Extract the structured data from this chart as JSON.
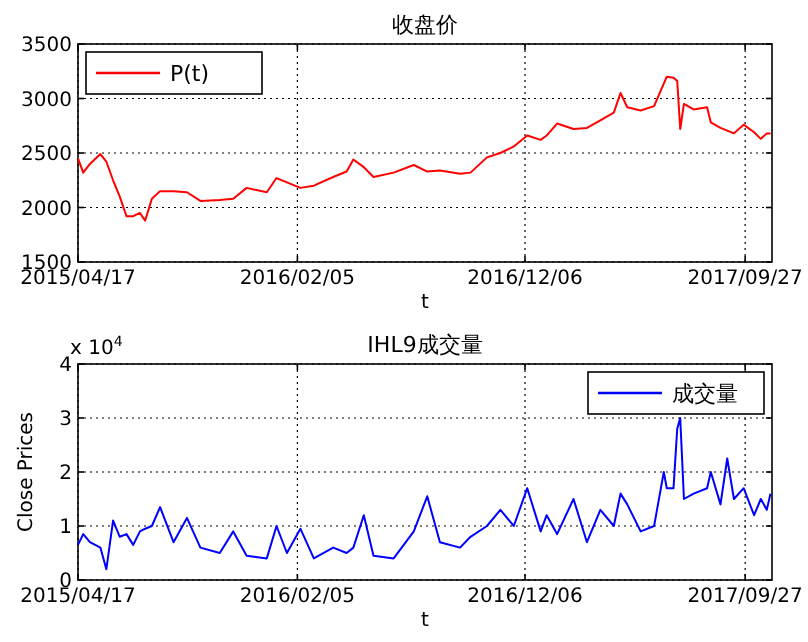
{
  "chart_data": [
    {
      "type": "line",
      "title": "收盘价",
      "xlabel": "t",
      "x": [
        "2015-04-17",
        "2015-04-24",
        "2015-05-03",
        "2015-05-17",
        "2015-05-25",
        "2015-06-03",
        "2015-06-12",
        "2015-06-21",
        "2015-06-30",
        "2015-07-09",
        "2015-07-16",
        "2015-07-25",
        "2015-08-05",
        "2015-08-23",
        "2015-09-10",
        "2015-09-28",
        "2015-10-24",
        "2015-11-11",
        "2015-11-29",
        "2015-12-26",
        "2016-01-08",
        "2016-01-22",
        "2016-02-09",
        "2016-02-27",
        "2016-03-24",
        "2016-04-11",
        "2016-04-20",
        "2016-05-04",
        "2016-05-17",
        "2016-06-13",
        "2016-07-10",
        "2016-07-28",
        "2016-08-14",
        "2016-09-10",
        "2016-09-24",
        "2016-10-16",
        "2016-11-03",
        "2016-11-21",
        "2016-12-09",
        "2016-12-27",
        "2017-01-04",
        "2017-01-18",
        "2017-02-09",
        "2017-02-27",
        "2017-03-17",
        "2017-04-04",
        "2017-04-13",
        "2017-04-22",
        "2017-05-10",
        "2017-05-28",
        "2017-06-14",
        "2017-06-23",
        "2017-06-28",
        "2017-07-02",
        "2017-07-07",
        "2017-07-20",
        "2017-08-07",
        "2017-08-12",
        "2017-08-25",
        "2017-09-12",
        "2017-09-25",
        "2017-10-09",
        "2017-10-18",
        "2017-10-26",
        "2017-10-31"
      ],
      "series": [
        {
          "name": "P(t)",
          "color": "#ff0000",
          "values": [
            2450,
            2320,
            2400,
            2490,
            2420,
            2250,
            2100,
            1920,
            1920,
            1950,
            1880,
            2080,
            2150,
            2150,
            2140,
            2060,
            2070,
            2080,
            2180,
            2140,
            2270,
            2230,
            2180,
            2200,
            2280,
            2330,
            2440,
            2370,
            2280,
            2320,
            2390,
            2330,
            2340,
            2310,
            2320,
            2460,
            2500,
            2560,
            2660,
            2620,
            2660,
            2770,
            2720,
            2730,
            2800,
            2870,
            3050,
            2920,
            2890,
            2930,
            3200,
            3190,
            3160,
            2720,
            2950,
            2900,
            2920,
            2780,
            2730,
            2680,
            2760,
            2690,
            2630,
            2680,
            2680
          ]
        }
      ],
      "xlim": [
        "2015-04-17",
        "2017-11-02"
      ],
      "xticks": [
        {
          "value": "2015-04-17",
          "label": "2015/04/17"
        },
        {
          "value": "2016-02-05",
          "label": "2016/02/05"
        },
        {
          "value": "2016-12-06",
          "label": "2016/12/06"
        },
        {
          "value": "2017-09-27",
          "label": "2017/09/27"
        }
      ],
      "ylim": [
        1500,
        3500
      ],
      "yticks": [
        1500,
        2000,
        2500,
        3000,
        3500
      ],
      "grid": true,
      "legend": "top left"
    },
    {
      "type": "line",
      "title": "IHL9成交量",
      "xlabel": "t",
      "ylabel": "Close Prices",
      "annotations": [
        "x 10$^{4}$"
      ],
      "x": [
        "2015-04-17",
        "2015-04-24",
        "2015-05-03",
        "2015-05-17",
        "2015-05-25",
        "2015-06-03",
        "2015-06-12",
        "2015-06-21",
        "2015-06-30",
        "2015-07-09",
        "2015-07-16",
        "2015-07-25",
        "2015-08-05",
        "2015-08-23",
        "2015-09-10",
        "2015-09-28",
        "2015-10-24",
        "2015-11-11",
        "2015-11-29",
        "2015-12-26",
        "2016-01-08",
        "2016-01-22",
        "2016-02-09",
        "2016-02-27",
        "2016-03-24",
        "2016-04-11",
        "2016-04-20",
        "2016-05-04",
        "2016-05-17",
        "2016-06-13",
        "2016-07-10",
        "2016-07-28",
        "2016-08-14",
        "2016-09-10",
        "2016-09-24",
        "2016-10-16",
        "2016-11-03",
        "2016-11-21",
        "2016-12-09",
        "2016-12-27",
        "2017-01-04",
        "2017-01-18",
        "2017-02-09",
        "2017-02-27",
        "2017-03-17",
        "2017-04-04",
        "2017-04-13",
        "2017-04-22",
        "2017-05-10",
        "2017-05-28",
        "2017-06-10",
        "2017-06-14",
        "2017-06-23",
        "2017-06-28",
        "2017-07-02",
        "2017-07-07",
        "2017-07-20",
        "2017-08-07",
        "2017-08-12",
        "2017-08-25",
        "2017-09-03",
        "2017-09-12",
        "2017-09-25",
        "2017-10-09",
        "2017-10-18",
        "2017-10-26",
        "2017-10-31"
      ],
      "series": [
        {
          "name": "成交量",
          "color": "#0000ff",
          "values": [
            0.65,
            0.85,
            0.7,
            0.6,
            0.2,
            1.1,
            0.8,
            0.85,
            0.65,
            0.9,
            0.95,
            1.0,
            1.35,
            0.7,
            1.15,
            0.6,
            0.5,
            0.9,
            0.45,
            0.4,
            1.0,
            0.5,
            0.95,
            0.4,
            0.6,
            0.5,
            0.6,
            1.2,
            0.45,
            0.4,
            0.9,
            1.55,
            0.7,
            0.6,
            0.8,
            1.0,
            1.3,
            1.0,
            1.7,
            0.9,
            1.2,
            0.85,
            1.5,
            0.7,
            1.3,
            1.0,
            1.6,
            1.4,
            0.9,
            1.0,
            2.0,
            1.7,
            1.7,
            2.8,
            3.0,
            1.5,
            1.6,
            1.7,
            2.0,
            1.4,
            2.25,
            1.5,
            1.7,
            1.2,
            1.5,
            1.3,
            1.6
          ]
        }
      ],
      "xlim": [
        "2015-04-17",
        "2017-11-02"
      ],
      "xticks": [
        {
          "value": "2015-04-17",
          "label": "2015/04/17"
        },
        {
          "value": "2016-02-05",
          "label": "2016/02/05"
        },
        {
          "value": "2016-12-06",
          "label": "2016/12/06"
        },
        {
          "value": "2017-09-27",
          "label": "2017/09/27"
        }
      ],
      "ylim": [
        0,
        4
      ],
      "yticks": [
        0,
        1,
        2,
        3,
        4
      ],
      "grid": true,
      "legend": "top right"
    }
  ]
}
